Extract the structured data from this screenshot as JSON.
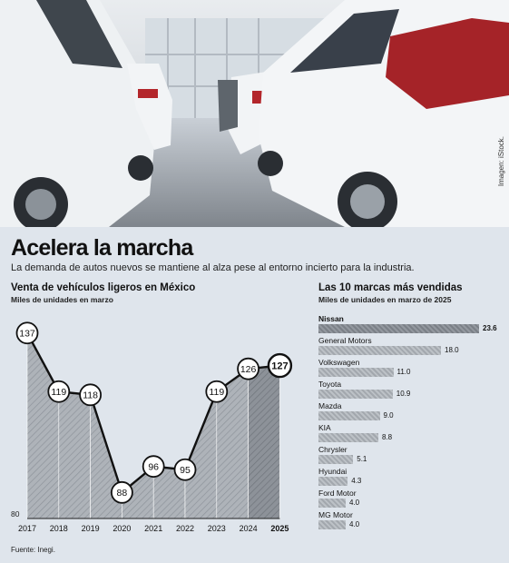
{
  "header": {
    "title": "Acelera la marcha",
    "subtitle": "La demanda de autos nuevos se mantiene al alza pese al entorno incierto para la industria.",
    "photo_credit": "Imagen: iStock."
  },
  "footer": {
    "source": "Fuente: Inegi."
  },
  "colors": {
    "background": "#dfe5ec",
    "bar": "#a9aeb4",
    "bar_top": "#7b8087",
    "hatch": "#8e949b"
  },
  "chart_data": [
    {
      "type": "area",
      "title": "Venta de vehículos ligeros en México",
      "subtitle": "Miles de unidades en marzo",
      "x": [
        "2017",
        "2018",
        "2019",
        "2020",
        "2021",
        "2022",
        "2023",
        "2024",
        "2025"
      ],
      "values": [
        137,
        119,
        118,
        88,
        96,
        95,
        119,
        126,
        127
      ],
      "value_labels": [
        "137",
        "119",
        "118",
        "88",
        "96",
        "95",
        "119",
        "126",
        "127"
      ],
      "ylim": [
        80,
        140
      ],
      "y_baseline_label": "80",
      "highlight_last": true
    },
    {
      "type": "bar",
      "title": "Las 10 marcas más vendidas",
      "subtitle": "Miles de unidades en marzo de 2025",
      "categories": [
        "Nissan",
        "General Motors",
        "Volkswagen",
        "Toyota",
        "Mazda",
        "KIA",
        "Chrysler",
        "Hyundai",
        "Ford Motor",
        "MG Motor"
      ],
      "values": [
        23.6,
        18.0,
        11.0,
        10.9,
        9.0,
        8.8,
        5.1,
        4.3,
        4.0,
        4.0
      ],
      "value_labels": [
        "23.6",
        "18.0",
        "11.0",
        "10.9",
        "9.0",
        "8.8",
        "5.1",
        "4.3",
        "4.0",
        "4.0"
      ],
      "orientation": "horizontal"
    }
  ]
}
